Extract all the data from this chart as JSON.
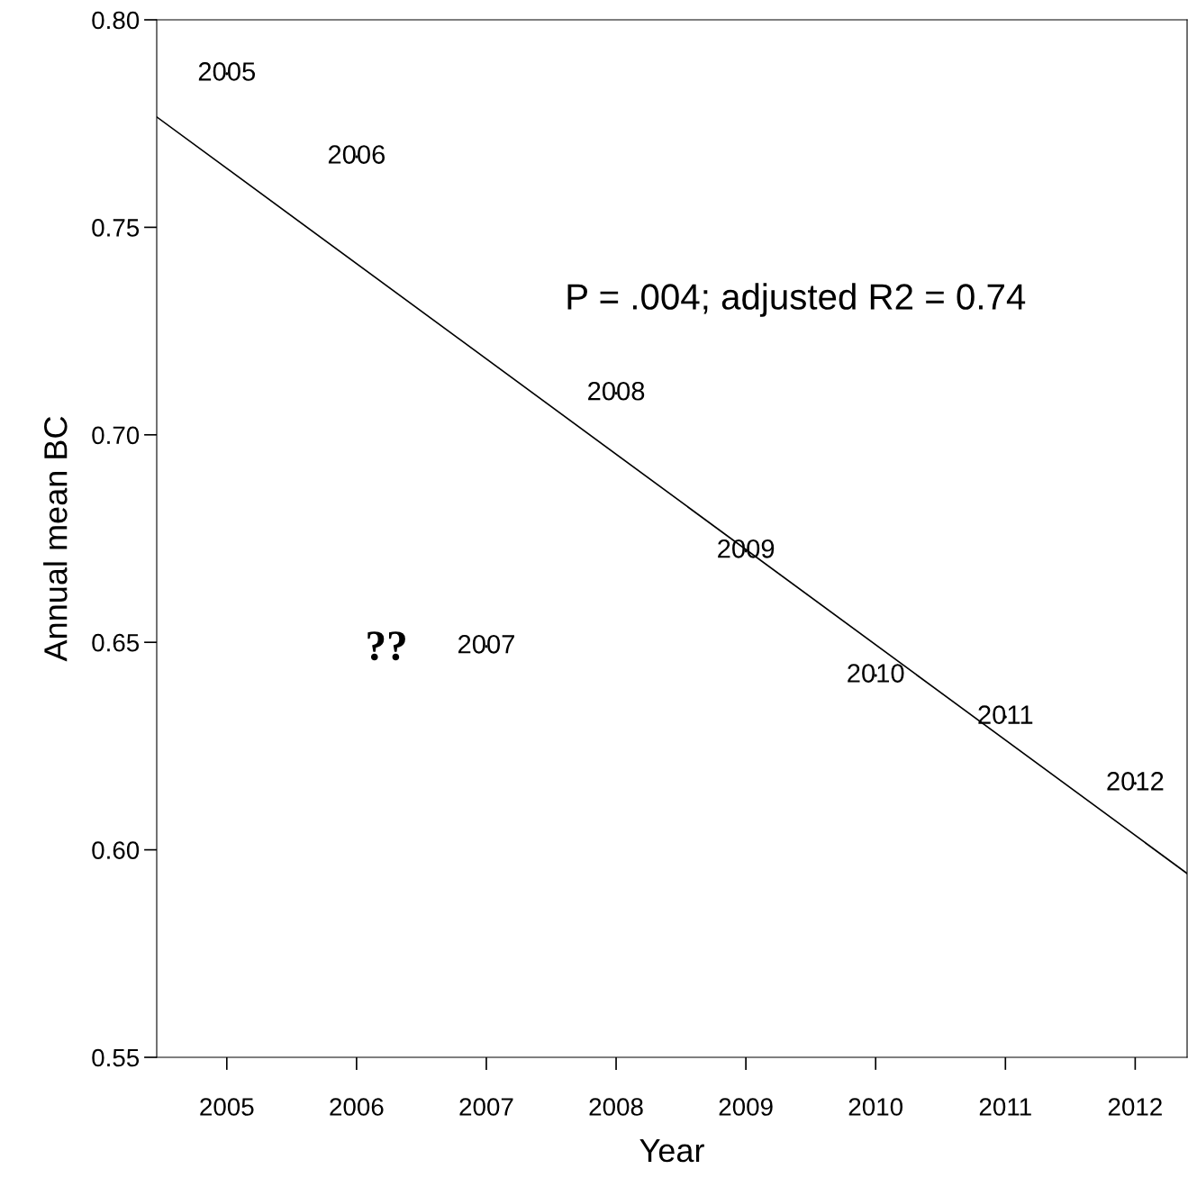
{
  "chart_data": {
    "type": "scatter",
    "xlabel": "Year",
    "ylabel": "Annual mean BC",
    "xlim": [
      2004.46,
      2012.4
    ],
    "xticks": [
      2005,
      2006,
      2007,
      2008,
      2009,
      2010,
      2011,
      2012
    ],
    "ylim": [
      0.55,
      0.8
    ],
    "yticks": [
      0.55,
      {
        "value": 0.6,
        "label": "0.60"
      },
      0.65,
      {
        "value": 0.7,
        "label": "0.70"
      },
      0.75,
      {
        "value": 0.8,
        "label": "0.80"
      }
    ],
    "grid": false,
    "legend": false,
    "series": [
      {
        "marker": "circle",
        "color": "#000000",
        "x": [
          2005,
          2006,
          2007,
          2008,
          2009,
          2010,
          2011,
          2012
        ],
        "values": [
          0.787,
          0.767,
          0.649,
          0.71,
          0.672,
          0.642,
          0.632,
          0.616
        ]
      },
      {
        "type": "line",
        "color": "#000000",
        "x": [
          2004.46,
          2012.4
        ],
        "values": [
          0.7766,
          0.5943
        ]
      }
    ],
    "annotations": [
      {
        "text": "2005",
        "x": 2005,
        "y": 0.787
      },
      {
        "text": "2006",
        "x": 2006,
        "y": 0.767
      },
      {
        "text": "2007",
        "x": 2007,
        "y": 0.649
      },
      {
        "text": "2008",
        "x": 2008,
        "y": 0.71
      },
      {
        "text": "2009",
        "x": 2009,
        "y": 0.672
      },
      {
        "text": "2010",
        "x": 2010,
        "y": 0.642
      },
      {
        "text": "2011",
        "x": 2011,
        "y": 0.632
      },
      {
        "text": "2012",
        "x": 2012,
        "y": 0.616
      },
      "??",
      "P = .004; adjusted R2 = 0.74"
    ]
  }
}
